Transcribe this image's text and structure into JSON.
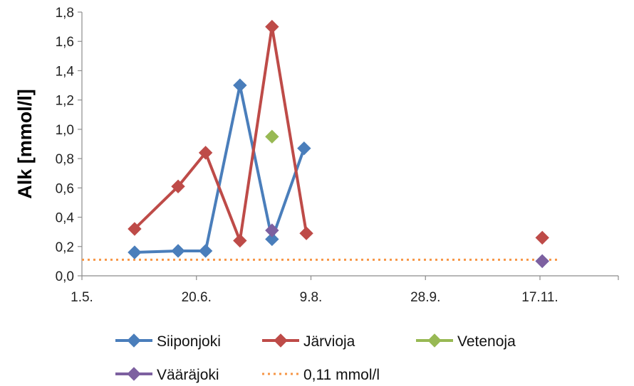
{
  "chart_data": {
    "type": "line",
    "title": "",
    "xlabel": "",
    "ylabel": "Alk [mmol/l]",
    "x_axis": {
      "type": "date",
      "min": "1.5.",
      "max": "27.12.",
      "ticks": [
        {
          "label": "1.5.",
          "date": "05-01"
        },
        {
          "label": "20.6.",
          "date": "06-20"
        },
        {
          "label": "9.8.",
          "date": "08-09"
        },
        {
          "label": "28.9.",
          "date": "09-28"
        },
        {
          "label": "17.11.",
          "date": "11-17"
        }
      ]
    },
    "ylim": [
      0,
      1.8
    ],
    "y_ticks": [
      "0,0",
      "0,2",
      "0,4",
      "0,6",
      "0,8",
      "1,0",
      "1,2",
      "1,4",
      "1,6",
      "1,8"
    ],
    "grid": false,
    "legend_position": "bottom",
    "series": [
      {
        "name": "Siiponjoki",
        "color": "#4a7ebb",
        "marker": "diamond",
        "points": [
          {
            "x": "05-24",
            "y": 0.16
          },
          {
            "x": "06-12",
            "y": 0.17
          },
          {
            "x": "06-24",
            "y": 0.17
          },
          {
            "x": "07-09",
            "y": 1.3
          },
          {
            "x": "07-23",
            "y": 0.25
          },
          {
            "x": "08-06",
            "y": 0.87
          }
        ],
        "isolated_points": [
          {
            "x": "11-18",
            "y": 0.1
          }
        ]
      },
      {
        "name": "Järvioja",
        "color": "#be4b48",
        "marker": "diamond",
        "points": [
          {
            "x": "05-24",
            "y": 0.32
          },
          {
            "x": "06-12",
            "y": 0.61
          },
          {
            "x": "06-24",
            "y": 0.84
          },
          {
            "x": "07-09",
            "y": 0.24
          },
          {
            "x": "07-23",
            "y": 1.7
          },
          {
            "x": "08-07",
            "y": 0.29
          }
        ],
        "isolated_points": [
          {
            "x": "11-18",
            "y": 0.26
          }
        ]
      },
      {
        "name": "Vetenoja",
        "color": "#98b954",
        "marker": "diamond",
        "points": [
          {
            "x": "07-23",
            "y": 0.95
          }
        ]
      },
      {
        "name": "Vääräjoki",
        "color": "#7d60a0",
        "marker": "diamond",
        "points": [
          {
            "x": "07-23",
            "y": 0.31
          }
        ],
        "isolated_points": [
          {
            "x": "11-18",
            "y": 0.1
          }
        ]
      },
      {
        "name": "0,11 mmol/l",
        "color": "#f79646",
        "style": "dotted",
        "reference_y": 0.11
      }
    ]
  }
}
